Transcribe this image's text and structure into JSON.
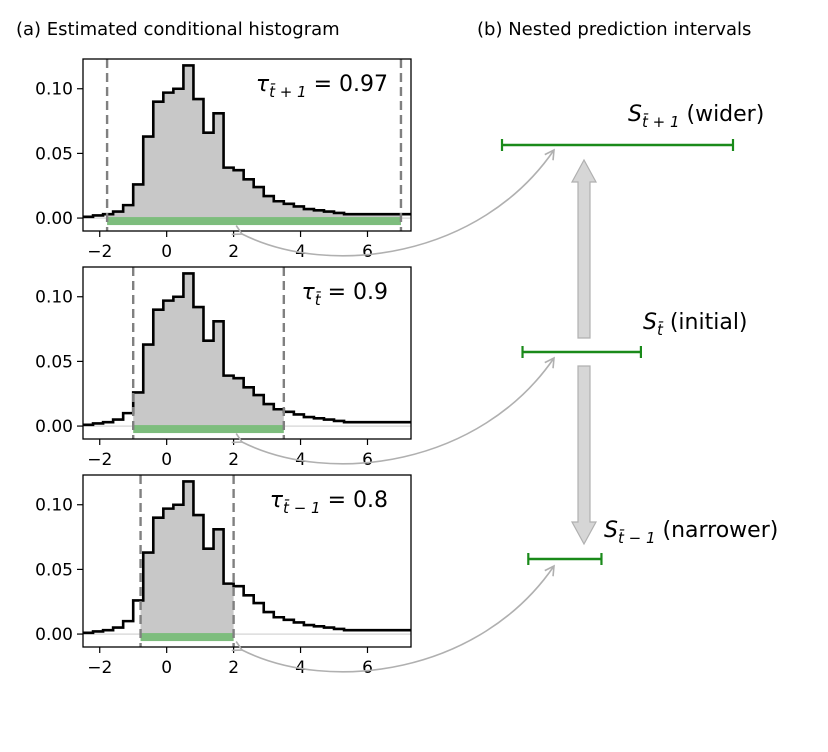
{
  "panel_a_title": "(a) Estimated conditional histogram",
  "panel_b_title": "(b) Nested prediction intervals",
  "chart_data": [
    {
      "type": "histogram",
      "title": "(a) Estimated conditional histogram",
      "xlim": [
        -2.5,
        7.3
      ],
      "ylim": [
        -0.01,
        0.123
      ],
      "xticks": [
        -2,
        0,
        2,
        4,
        6
      ],
      "xtick_labels": [
        "−2",
        "0",
        "2",
        "4",
        "6"
      ],
      "yticks": [
        0.0,
        0.05,
        0.1
      ],
      "ytick_labels": [
        "0.00",
        "0.05",
        "0.10"
      ],
      "grid": false,
      "bins": {
        "edges": [
          -2.5,
          -2.2,
          -1.9,
          -1.6,
          -1.3,
          -1.0,
          -0.7,
          -0.4,
          -0.1,
          0.2,
          0.5,
          0.8,
          1.1,
          1.4,
          1.7,
          2.0,
          2.3,
          2.6,
          2.9,
          3.2,
          3.5,
          3.8,
          4.1,
          4.4,
          4.7,
          5.0,
          5.3,
          5.6,
          5.9,
          6.2,
          6.5,
          6.8,
          7.1,
          7.3
        ],
        "density": [
          0.001,
          0.002,
          0.003,
          0.005,
          0.01,
          0.026,
          0.063,
          0.09,
          0.097,
          0.1,
          0.118,
          0.092,
          0.066,
          0.081,
          0.039,
          0.037,
          0.03,
          0.024,
          0.017,
          0.013,
          0.011,
          0.009,
          0.007,
          0.006,
          0.005,
          0.004,
          0.003,
          0.003,
          0.003,
          0.003,
          0.003,
          0.003,
          0.003
        ]
      },
      "panels": [
        {
          "tau_label": "τ",
          "tau_sub": "t̄ + 1",
          "tau_value": "= 0.97",
          "interval": [
            -1.78,
            7.0
          ]
        },
        {
          "tau_label": "τ",
          "tau_sub": "t̄",
          "tau_value": "= 0.9",
          "interval": [
            -1.0,
            3.5
          ]
        },
        {
          "tau_label": "τ",
          "tau_sub": "t̄ − 1",
          "tau_value": "= 0.8",
          "interval": [
            -0.78,
            2.0
          ]
        }
      ]
    },
    {
      "type": "interval",
      "title": "(b) Nested prediction intervals",
      "intervals": [
        {
          "label": "S",
          "sub": "t̄ + 1",
          "note": "(wider)",
          "range": [
            -1.78,
            7.0
          ]
        },
        {
          "label": "S",
          "sub": "t̄",
          "note": "(initial)",
          "range": [
            -1.0,
            3.5
          ]
        },
        {
          "label": "S",
          "sub": "t̄ − 1",
          "note": "(narrower)",
          "range": [
            -0.78,
            2.0
          ]
        }
      ]
    }
  ],
  "colors": {
    "histogram_fill": "#c8c8c8",
    "histogram_line": "#000000",
    "interval": "#1a8a1a",
    "interval_band": "#7dbd7d",
    "dashed": "#808080",
    "arrow": "#b8b8b8",
    "arrow_fill": "#d6d6d6"
  }
}
